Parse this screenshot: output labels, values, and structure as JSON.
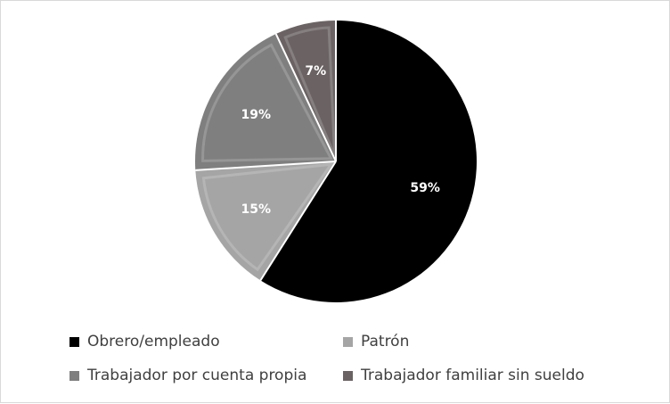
{
  "chart_data": {
    "type": "pie",
    "title": "",
    "slices": [
      {
        "name": "Obrero/empleado",
        "value": 59,
        "label": "59%",
        "color": "#000000"
      },
      {
        "name": "Patrón",
        "value": 15,
        "label": "15%",
        "color": "#a5a5a5"
      },
      {
        "name": "Trabajador por cuenta propia",
        "value": 19,
        "label": "19%",
        "color": "#7f7f7f"
      },
      {
        "name": "Trabajador familiar sin sueldo",
        "value": 7,
        "label": "7%",
        "color": "#6b6363"
      }
    ],
    "legend_position": "bottom",
    "start_angle": "12 o'clock, clockwise"
  }
}
